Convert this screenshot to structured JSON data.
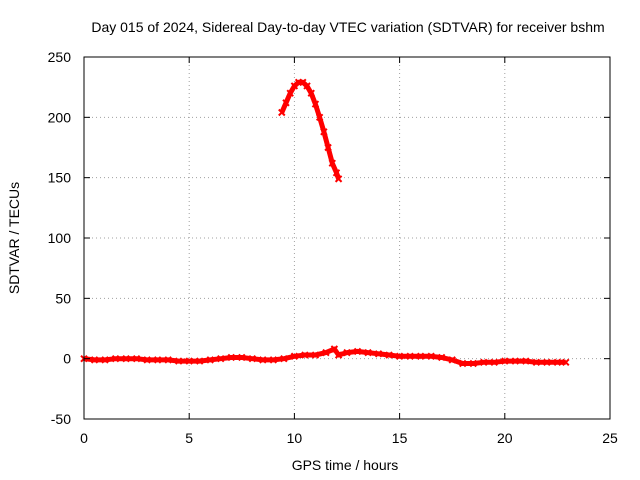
{
  "chart_data": {
    "type": "scatter",
    "title": "Day 015 of 2024, Sidereal Day-to-day VTEC variation (SDTVAR) for receiver bshm",
    "xlabel": "GPS time / hours",
    "ylabel": "SDTVAR / TECUs",
    "xlim": [
      0,
      25
    ],
    "ylim": [
      -50,
      250
    ],
    "xticks": [
      0,
      5,
      10,
      15,
      20,
      25
    ],
    "yticks": [
      -50,
      0,
      50,
      100,
      150,
      200,
      250
    ],
    "grid": true,
    "series_color": "#ff0000",
    "series": [
      {
        "name": "main",
        "x": [
          0.0,
          0.5,
          1.0,
          1.5,
          2.0,
          2.5,
          3.0,
          3.5,
          4.0,
          4.5,
          5.0,
          5.5,
          6.0,
          6.5,
          7.0,
          7.5,
          8.0,
          8.5,
          9.0,
          9.5,
          10.0,
          10.5,
          11.0,
          11.5,
          11.9,
          12.1,
          12.5,
          13.0,
          13.5,
          14.0,
          14.5,
          15.0,
          15.5,
          16.0,
          16.5,
          17.0,
          17.5,
          18.0,
          18.5,
          19.0,
          19.5,
          20.0,
          20.5,
          21.0,
          21.5,
          22.0,
          22.5,
          22.9
        ],
        "y": [
          0,
          -1,
          -1,
          0,
          0,
          0,
          -1,
          -1,
          -1,
          -2,
          -2,
          -2,
          -1,
          0,
          1,
          1,
          0,
          -1,
          -1,
          0,
          2,
          3,
          3,
          5,
          8,
          3,
          5,
          6,
          5,
          4,
          3,
          2,
          2,
          2,
          2,
          1,
          -1,
          -4,
          -4,
          -3,
          -3,
          -2,
          -2,
          -2,
          -3,
          -3,
          -3,
          -3
        ]
      },
      {
        "name": "arc",
        "x": [
          9.4,
          9.6,
          9.8,
          10.0,
          10.2,
          10.4,
          10.6,
          10.8,
          11.0,
          11.2,
          11.4,
          11.6,
          11.8,
          12.0,
          12.1
        ],
        "y": [
          204,
          212,
          220,
          226,
          229,
          229,
          226,
          220,
          211,
          200,
          188,
          175,
          162,
          154,
          149
        ]
      }
    ]
  }
}
